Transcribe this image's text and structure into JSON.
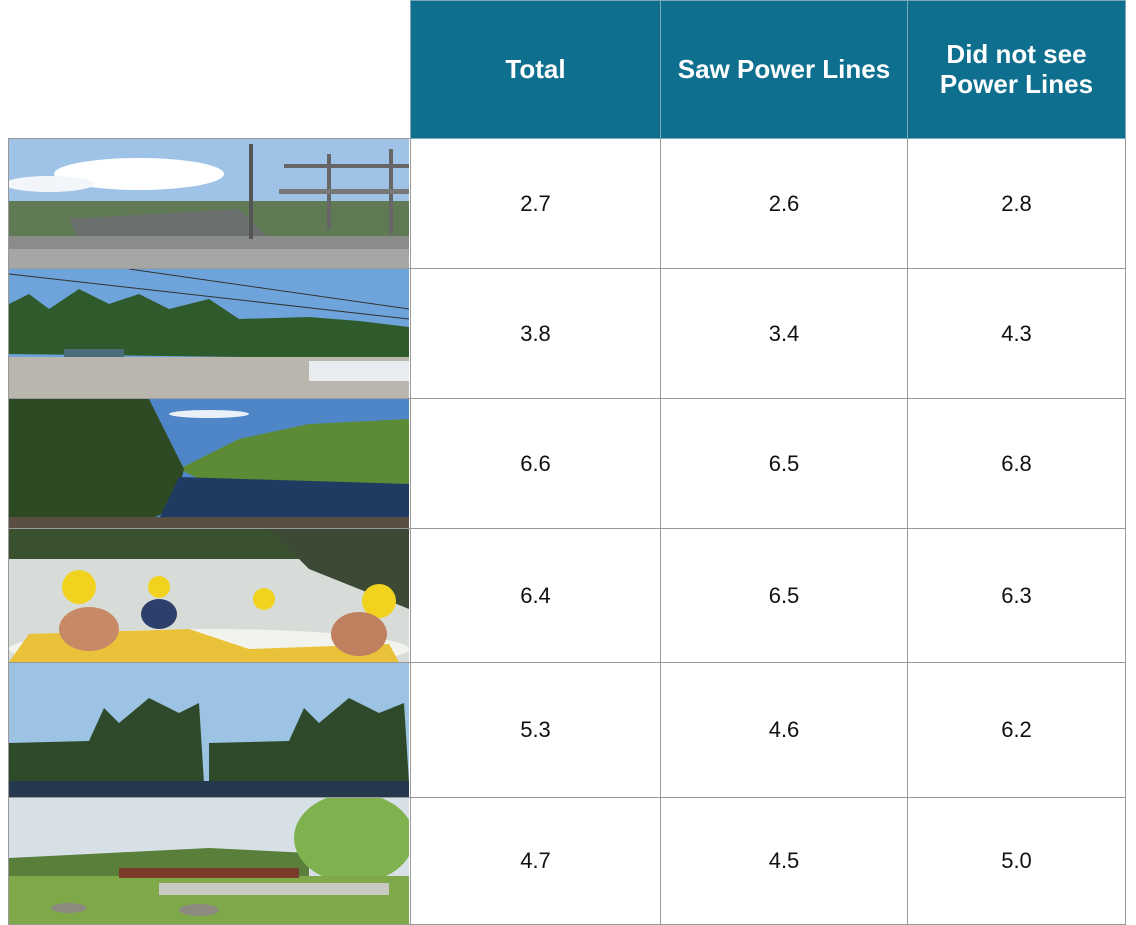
{
  "table": {
    "header": [
      "Total",
      "Saw Power Lines",
      "Did not see Power Lines"
    ],
    "rows": [
      [
        "2.7",
        "2.6",
        "2.8"
      ],
      [
        "3.8",
        "3.4",
        "4.3"
      ],
      [
        "6.6",
        "6.5",
        "6.8"
      ],
      [
        "6.4",
        "6.5",
        "6.3"
      ],
      [
        "5.3",
        "4.6",
        "6.2"
      ],
      [
        "4.7",
        "4.5",
        "5.0"
      ]
    ]
  }
}
